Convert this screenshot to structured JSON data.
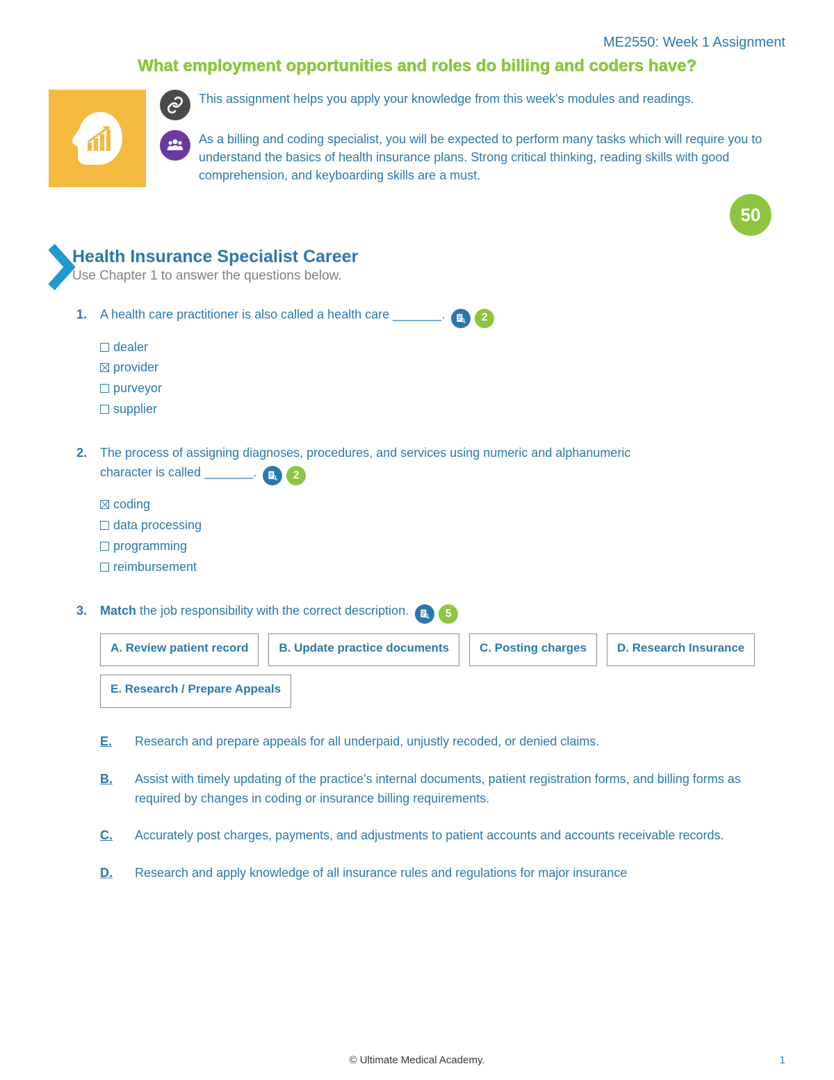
{
  "header": {
    "course": "ME2550: Week 1 Assignment",
    "title": "What employment opportunities and roles do billing and coders have?"
  },
  "intro": {
    "paragraph1": "This assignment helps you apply your knowledge from this week's modules and readings.",
    "paragraph2": "As a billing and coding specialist, you will be expected to perform many tasks which will require you to understand the basics of health insurance plans. Strong critical thinking, reading skills with good comprehension, and keyboarding skills are a must."
  },
  "total_points": "50",
  "section": {
    "title": "Health Insurance Specialist Career",
    "sub": "Use Chapter 1 to answer the questions below."
  },
  "q1": {
    "num": "1.",
    "text": "A health care practitioner is also called a health care _______.",
    "points": "2",
    "options": [
      {
        "label": "dealer",
        "checked": false
      },
      {
        "label": "provider",
        "checked": true
      },
      {
        "label": "purveyor",
        "checked": false
      },
      {
        "label": "supplier",
        "checked": false
      }
    ]
  },
  "q2": {
    "num": "2.",
    "text_pre": "The process of assigning diagnoses, procedures, and services using numeric and alphanumeric",
    "text_post": "character is called _______.",
    "points": "2",
    "options": [
      {
        "label": "coding",
        "checked": true
      },
      {
        "label": "data processing",
        "checked": false
      },
      {
        "label": "programming",
        "checked": false
      },
      {
        "label": "reimbursement",
        "checked": false
      }
    ]
  },
  "q3": {
    "num": "3.",
    "text": " the job responsibility with the correct description.",
    "match_word": "Match",
    "points": "5",
    "boxes": [
      "A. Review patient record",
      "B. Update practice documents",
      "C. Posting charges",
      "D. Research Insurance",
      "E. Research / Prepare Appeals"
    ],
    "answers": [
      {
        "letter": "E.",
        "desc": "Research and prepare appeals for all underpaid, unjustly recoded, or denied claims."
      },
      {
        "letter": "B.",
        "desc": "Assist with timely updating of the practice's internal documents, patient registration forms, and billing forms as required by changes in coding or insurance billing requirements."
      },
      {
        "letter": "C.",
        "desc": "Accurately post charges, payments, and adjustments to patient accounts and accounts receivable records."
      },
      {
        "letter": "D.",
        "desc": "Research and apply knowledge of all insurance rules and regulations for major insurance"
      }
    ]
  },
  "footer": "© Ultimate Medical Academy.",
  "page_number": "1",
  "colors": {
    "blue": "#2b77ad",
    "green": "#8cc63f",
    "yellow": "#f4b93f",
    "purple": "#6b3aa0",
    "dark_gray": "#4a4a4a"
  }
}
